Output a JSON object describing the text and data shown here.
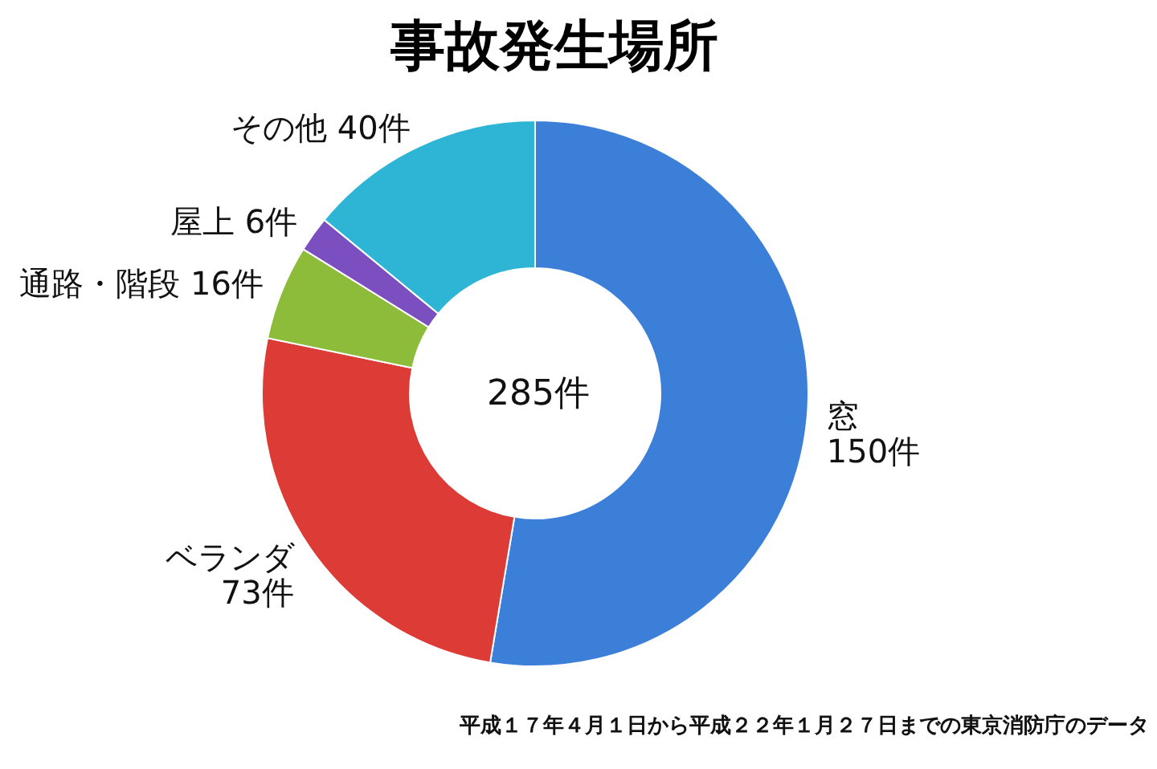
{
  "chart_data": {
    "type": "donut",
    "title": "事故発生場所",
    "categories": [
      "窓",
      "ベランダ",
      "通路・階段",
      "屋上",
      "その他"
    ],
    "values": [
      150,
      73,
      16,
      6,
      40
    ],
    "value_labels": [
      "150件",
      "73件",
      "16件",
      "6件",
      "40件"
    ],
    "colors": [
      "#3c7fd9",
      "#dc3b36",
      "#8dbb3a",
      "#7b4fc0",
      "#2eb5d6"
    ],
    "annotations": [
      "285件",
      "平成１７年４月１日から平成２２年１月２７日までの東京消防庁のデータ"
    ]
  }
}
